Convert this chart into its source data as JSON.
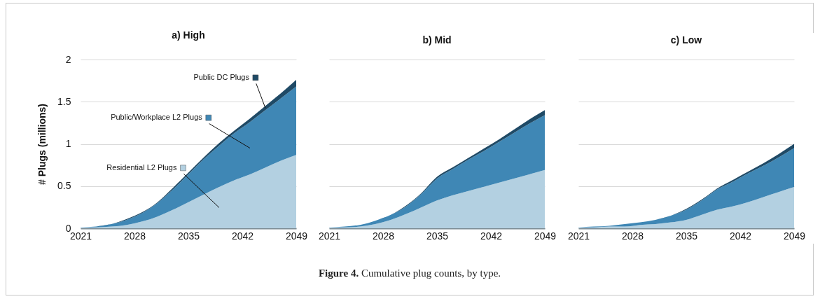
{
  "chart_data": [
    {
      "type": "area",
      "title": "a) High",
      "ylabel": "# Plugs (millions)",
      "stacked": true,
      "grid": "y",
      "legend": "top left",
      "x": [
        2021,
        2023,
        2025,
        2027,
        2029,
        2031,
        2033,
        2035,
        2037,
        2039,
        2041,
        2043,
        2045,
        2047,
        2049
      ],
      "xlim": [
        2021,
        2049
      ],
      "xticks": [
        2021,
        2028,
        2035,
        2042,
        2049
      ],
      "ylim": [
        0,
        2
      ],
      "yticks": [
        0,
        0.5,
        1,
        1.5,
        2
      ],
      "series": [
        {
          "name": "Residential L2 Plugs",
          "color": "#b3d0e1",
          "values": [
            0.01,
            0.01,
            0.02,
            0.04,
            0.08,
            0.14,
            0.22,
            0.31,
            0.4,
            0.49,
            0.57,
            0.64,
            0.72,
            0.8,
            0.87
          ]
        },
        {
          "name": "Public/Workplace L2 Plugs",
          "color": "#3f87b5",
          "values": [
            0,
            0.01,
            0.03,
            0.06,
            0.1,
            0.16,
            0.24,
            0.33,
            0.42,
            0.49,
            0.56,
            0.62,
            0.68,
            0.74,
            0.81
          ]
        },
        {
          "name": "Public DC Plugs",
          "color": "#1f4a66",
          "values": [
            0,
            0,
            0,
            0.01,
            0.01,
            0.01,
            0.02,
            0.02,
            0.02,
            0.03,
            0.03,
            0.04,
            0.05,
            0.06,
            0.08
          ]
        }
      ],
      "annotations": [
        "Figure 4. Cumulative plug counts, by type."
      ]
    },
    {
      "type": "area",
      "title": "b) Mid",
      "stacked": true,
      "grid": "y",
      "tick_labels": "x",
      "x": [
        2021,
        2023,
        2025,
        2027,
        2029,
        2031,
        2033,
        2035,
        2037,
        2039,
        2041,
        2043,
        2045,
        2047,
        2049
      ],
      "xlim": [
        2021,
        2049
      ],
      "xticks": [
        2021,
        2028,
        2035,
        2042,
        2049
      ],
      "ylim": [
        0,
        2
      ],
      "yticks": [
        0,
        0.5,
        1,
        1.5,
        2
      ],
      "series": [
        {
          "color": "#b3d0e1",
          "values": [
            0.01,
            0.01,
            0.02,
            0.05,
            0.1,
            0.17,
            0.25,
            0.33,
            0.39,
            0.44,
            0.49,
            0.54,
            0.59,
            0.64,
            0.69
          ]
        },
        {
          "color": "#3f87b5",
          "values": [
            0,
            0.01,
            0.02,
            0.04,
            0.06,
            0.09,
            0.16,
            0.26,
            0.31,
            0.37,
            0.42,
            0.48,
            0.54,
            0.6,
            0.65
          ]
        },
        {
          "color": "#1f4a66",
          "values": [
            0,
            0,
            0,
            0,
            0,
            0.01,
            0.01,
            0.02,
            0.02,
            0.02,
            0.03,
            0.03,
            0.04,
            0.05,
            0.06
          ]
        }
      ]
    },
    {
      "type": "area",
      "title": "c) Low",
      "stacked": true,
      "grid": "y",
      "tick_labels": "x",
      "x": [
        2021,
        2023,
        2025,
        2027,
        2029,
        2031,
        2033,
        2035,
        2037,
        2039,
        2041,
        2043,
        2045,
        2047,
        2049
      ],
      "xlim": [
        2021,
        2049
      ],
      "xticks": [
        2021,
        2028,
        2035,
        2042,
        2049
      ],
      "ylim": [
        0,
        2
      ],
      "yticks": [
        0,
        0.5,
        1,
        1.5,
        2
      ],
      "series": [
        {
          "color": "#b3d0e1",
          "values": [
            0.01,
            0.01,
            0.02,
            0.02,
            0.04,
            0.05,
            0.07,
            0.1,
            0.16,
            0.22,
            0.26,
            0.31,
            0.37,
            0.43,
            0.49
          ]
        },
        {
          "color": "#3f87b5",
          "values": [
            0,
            0.01,
            0.01,
            0.03,
            0.03,
            0.05,
            0.08,
            0.12,
            0.17,
            0.24,
            0.29,
            0.34,
            0.37,
            0.41,
            0.46
          ]
        },
        {
          "color": "#1f4a66",
          "values": [
            0,
            0,
            0,
            0,
            0,
            0,
            0,
            0.01,
            0.01,
            0.01,
            0.02,
            0.02,
            0.03,
            0.04,
            0.05
          ]
        }
      ]
    }
  ]
}
